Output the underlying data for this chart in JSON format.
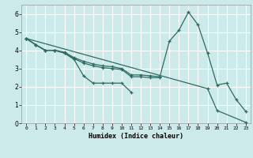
{
  "xlabel": "Humidex (Indice chaleur)",
  "background_color": "#cceaea",
  "grid_color": "#ffffff",
  "line_color": "#2e6b5e",
  "xlim": [
    -0.5,
    23.5
  ],
  "ylim": [
    0,
    6.5
  ],
  "xticks": [
    0,
    1,
    2,
    3,
    4,
    5,
    6,
    7,
    8,
    9,
    10,
    11,
    12,
    13,
    14,
    15,
    16,
    17,
    18,
    19,
    20,
    21,
    22,
    23
  ],
  "yticks": [
    0,
    1,
    2,
    3,
    4,
    5,
    6
  ],
  "series": [
    {
      "x": [
        0,
        1,
        2,
        3,
        4,
        5,
        6,
        7,
        8,
        9,
        10,
        11
      ],
      "y": [
        4.65,
        4.3,
        4.0,
        4.0,
        3.85,
        3.5,
        2.6,
        2.2,
        2.2,
        2.2,
        2.2,
        1.7
      ]
    },
    {
      "x": [
        0,
        1,
        2,
        3,
        4,
        5,
        6,
        7,
        8,
        9,
        10,
        11,
        12,
        13,
        14
      ],
      "y": [
        4.65,
        4.3,
        4.0,
        4.0,
        3.85,
        3.55,
        3.3,
        3.15,
        3.05,
        3.0,
        2.95,
        2.55,
        2.55,
        2.5,
        2.5
      ]
    },
    {
      "x": [
        0,
        1,
        2,
        3,
        4,
        5,
        6,
        7,
        8,
        9,
        10,
        11,
        12,
        13,
        14,
        15,
        16,
        17,
        18,
        19,
        20,
        21,
        22,
        23
      ],
      "y": [
        4.65,
        4.3,
        4.0,
        4.0,
        3.9,
        3.6,
        3.4,
        3.25,
        3.15,
        3.1,
        3.0,
        2.65,
        2.65,
        2.6,
        2.55,
        4.5,
        5.1,
        6.1,
        5.4,
        3.85,
        2.1,
        2.2,
        1.3,
        0.65
      ]
    },
    {
      "x": [
        0,
        19,
        20,
        23
      ],
      "y": [
        4.65,
        1.9,
        0.7,
        0.05
      ]
    }
  ]
}
